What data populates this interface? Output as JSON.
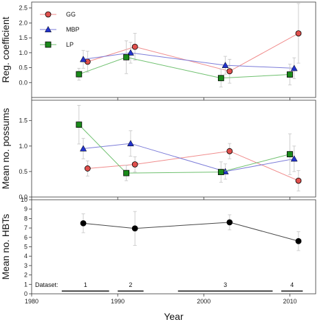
{
  "chart_data": {
    "type": "line",
    "x_axis": {
      "label": "Year",
      "range": [
        1980,
        2013
      ],
      "ticks": [
        1980,
        1990,
        2000,
        2010
      ]
    },
    "colors": {
      "GG": "#e0504d",
      "MBP": "#2233cc",
      "LP": "#1a8a1a",
      "HBT": "#000000"
    },
    "legend": {
      "placement": "top-left",
      "entries": [
        "GG",
        "MBP",
        "LP"
      ]
    },
    "panels": [
      {
        "id": "top",
        "ylabel": "Reg. coefficient",
        "ylim": [
          -0.5,
          2.7
        ],
        "yticks": [
          "0.0",
          "0.5",
          "1.0",
          "1.5",
          "2.0",
          "2.5"
        ],
        "series": [
          {
            "name": "GG",
            "marker": "circle",
            "x": [
              1986.5,
              1992,
              2003,
              2011
            ],
            "y": [
              0.7,
              1.2,
              0.38,
              1.65
            ],
            "err": [
              0.35,
              0.45,
              0.4,
              1.0
            ]
          },
          {
            "name": "MBP",
            "marker": "triangle",
            "x": [
              1986,
              1991.5,
              2002.5,
              2010.5
            ],
            "y": [
              0.78,
              1.0,
              0.58,
              0.48
            ],
            "err": [
              0.3,
              0.35,
              0.3,
              0.35
            ]
          },
          {
            "name": "LP",
            "marker": "square",
            "x": [
              1985.5,
              1991,
              2002,
              2010
            ],
            "y": [
              0.28,
              0.85,
              0.15,
              0.27
            ],
            "err": [
              0.2,
              0.55,
              0.3,
              0.35
            ]
          }
        ]
      },
      {
        "id": "middle",
        "ylabel": "Mean no. possums",
        "ylim": [
          0.0,
          1.9
        ],
        "yticks": [
          "0.0",
          "0.5",
          "1.0",
          "1.5"
        ],
        "series": [
          {
            "name": "GG",
            "marker": "circle",
            "x": [
              1986.5,
              1992,
              2003,
              2011
            ],
            "y": [
              0.56,
              0.64,
              0.9,
              0.32
            ],
            "err": [
              0.15,
              0.15,
              0.15,
              0.2
            ]
          },
          {
            "name": "MBP",
            "marker": "triangle",
            "x": [
              1986,
              1991.5,
              2002.5,
              2010.5
            ],
            "y": [
              0.95,
              1.05,
              0.5,
              0.75
            ],
            "err": [
              0.2,
              0.25,
              0.15,
              0.25
            ]
          },
          {
            "name": "LP",
            "marker": "square",
            "x": [
              1985.5,
              1991,
              2002,
              2010
            ],
            "y": [
              1.42,
              0.47,
              0.49,
              0.84
            ],
            "err": [
              0.38,
              0.15,
              0.2,
              0.4
            ]
          }
        ]
      },
      {
        "id": "bottom",
        "ylabel": "Mean no. HBTs",
        "ylim": [
          0,
          10
        ],
        "yticks": [
          "0",
          "1",
          "2",
          "3",
          "4",
          "5",
          "6",
          "7",
          "8",
          "9",
          "10"
        ],
        "series": [
          {
            "name": "HBTs",
            "marker": "circle",
            "x": [
              1986,
              1992,
              2003,
              2011
            ],
            "y": [
              7.5,
              6.95,
              7.6,
              5.6
            ],
            "err": [
              1.0,
              1.8,
              0.8,
              1.0
            ]
          }
        ],
        "datasets": {
          "label": "Dataset:",
          "items": [
            {
              "name": "1",
              "start": 1983.5,
              "end": 1989
            },
            {
              "name": "2",
              "start": 1990,
              "end": 1993
            },
            {
              "name": "3",
              "start": 1997,
              "end": 2008
            },
            {
              "name": "4",
              "start": 2009,
              "end": 2011.5
            }
          ]
        }
      }
    ]
  }
}
